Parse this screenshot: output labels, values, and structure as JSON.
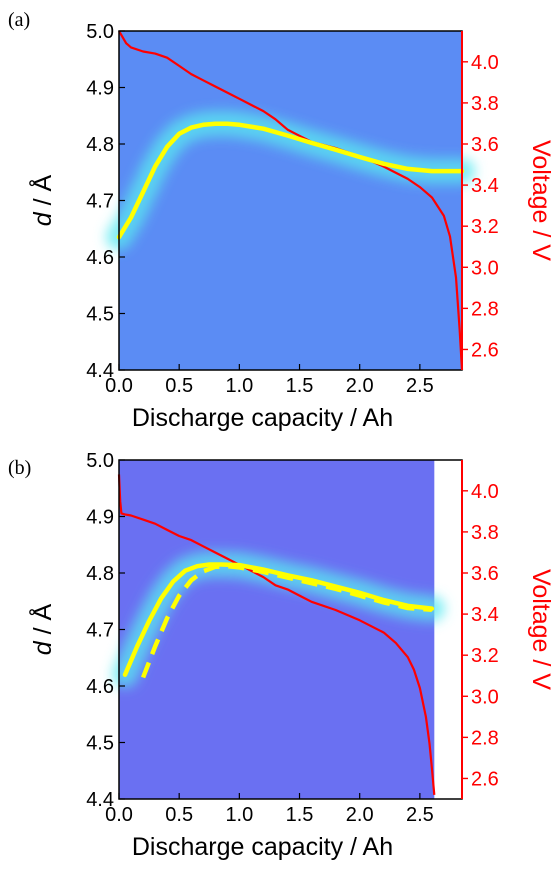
{
  "chart_data": [
    {
      "panel": "(a)",
      "type": "heatmap",
      "xlabel": "Discharge capacity / Ah",
      "ylabel_left_italic": "d",
      "ylabel_left_rest": " / Å",
      "ylabel_right": "Voltage / V",
      "xlim": [
        0,
        2.85
      ],
      "ylim_left": [
        4.4,
        5.0
      ],
      "ylim_right": [
        2.5,
        4.15
      ],
      "xticks": [
        "0.0",
        "0.5",
        "1.0",
        "1.5",
        "2.0",
        "2.5"
      ],
      "yticks_left": [
        "4.4",
        "4.5",
        "4.6",
        "4.7",
        "4.8",
        "4.9",
        "5.0"
      ],
      "yticks_right": [
        "2.6",
        "2.8",
        "3.0",
        "3.2",
        "3.4",
        "3.6",
        "3.8",
        "4.0"
      ],
      "background_color": "#5b8cf4",
      "band_end_x": 2.85,
      "d_spacing": {
        "name": "d",
        "axis": "left",
        "color": "#ffff00",
        "style": "solid",
        "x": [
          0.0,
          0.1,
          0.2,
          0.3,
          0.4,
          0.5,
          0.6,
          0.7,
          0.8,
          0.9,
          1.0,
          1.2,
          1.4,
          1.6,
          1.8,
          2.0,
          2.2,
          2.4,
          2.6,
          2.85
        ],
        "y": [
          4.635,
          4.67,
          4.715,
          4.76,
          4.795,
          4.818,
          4.829,
          4.834,
          4.836,
          4.836,
          4.834,
          4.827,
          4.815,
          4.802,
          4.79,
          4.777,
          4.765,
          4.756,
          4.752,
          4.752
        ]
      },
      "voltage": {
        "name": "Voltage",
        "axis": "right",
        "color": "#ff0000",
        "style": "solid",
        "x": [
          0.0,
          0.03,
          0.06,
          0.1,
          0.2,
          0.3,
          0.4,
          0.5,
          0.6,
          0.7,
          0.8,
          0.9,
          1.0,
          1.1,
          1.2,
          1.3,
          1.4,
          1.5,
          1.6,
          1.8,
          2.0,
          2.2,
          2.4,
          2.5,
          2.6,
          2.7,
          2.75,
          2.8,
          2.83,
          2.85
        ],
        "y": [
          4.15,
          4.12,
          4.09,
          4.07,
          4.05,
          4.04,
          4.02,
          3.98,
          3.94,
          3.91,
          3.88,
          3.85,
          3.82,
          3.79,
          3.76,
          3.72,
          3.67,
          3.64,
          3.61,
          3.58,
          3.54,
          3.49,
          3.43,
          3.39,
          3.34,
          3.25,
          3.15,
          2.95,
          2.7,
          2.5
        ]
      }
    },
    {
      "panel": "(b)",
      "type": "heatmap",
      "xlabel": "Discharge capacity / Ah",
      "ylabel_left_italic": "d",
      "ylabel_left_rest": " / Å",
      "ylabel_right": "Voltage / V",
      "xlim": [
        0,
        2.85
      ],
      "ylim_left": [
        4.4,
        5.0
      ],
      "ylim_right": [
        2.5,
        4.15
      ],
      "xticks": [
        "0.0",
        "0.5",
        "1.0",
        "1.5",
        "2.0",
        "2.5"
      ],
      "yticks_left": [
        "4.4",
        "4.5",
        "4.6",
        "4.7",
        "4.8",
        "4.9",
        "5.0"
      ],
      "yticks_right": [
        "2.6",
        "2.8",
        "3.0",
        "3.2",
        "3.4",
        "3.6",
        "3.8",
        "4.0"
      ],
      "background_color": "#6a70f2",
      "band_end_x": 2.62,
      "d_spacing": {
        "name": "d",
        "axis": "left",
        "color": "#ffff00",
        "style": "solid",
        "x": [
          0.05,
          0.15,
          0.25,
          0.35,
          0.45,
          0.55,
          0.65,
          0.75,
          0.85,
          1.0,
          1.2,
          1.4,
          1.6,
          1.8,
          2.0,
          2.2,
          2.4,
          2.6
        ],
        "y": [
          4.62,
          4.67,
          4.715,
          4.755,
          4.785,
          4.804,
          4.812,
          4.815,
          4.815,
          4.814,
          4.806,
          4.796,
          4.787,
          4.776,
          4.765,
          4.752,
          4.742,
          4.737
        ]
      },
      "d_spacing_2": {
        "name": "d",
        "axis": "left",
        "color": "#ffff00",
        "style": "dashed",
        "x": [
          0.2,
          0.3,
          0.4,
          0.5,
          0.6,
          0.7,
          0.8,
          0.9,
          1.0,
          1.2,
          1.4,
          1.6,
          1.8,
          2.0,
          2.2,
          2.4,
          2.6
        ],
        "y": [
          4.615,
          4.67,
          4.72,
          4.76,
          4.787,
          4.803,
          4.811,
          4.812,
          4.81,
          4.802,
          4.792,
          4.782,
          4.772,
          4.76,
          4.748,
          4.738,
          4.735
        ]
      },
      "voltage": {
        "name": "Voltage",
        "axis": "right",
        "color": "#ff0000",
        "style": "solid",
        "x": [
          0.0,
          0.01,
          0.02,
          0.05,
          0.1,
          0.2,
          0.3,
          0.4,
          0.5,
          0.6,
          0.7,
          0.8,
          0.9,
          1.0,
          1.1,
          1.2,
          1.3,
          1.4,
          1.5,
          1.6,
          1.8,
          2.0,
          2.2,
          2.3,
          2.4,
          2.45,
          2.5,
          2.55,
          2.58,
          2.6,
          2.62
        ],
        "y": [
          4.08,
          3.95,
          3.89,
          3.885,
          3.88,
          3.86,
          3.84,
          3.81,
          3.78,
          3.76,
          3.73,
          3.7,
          3.67,
          3.64,
          3.61,
          3.58,
          3.54,
          3.52,
          3.49,
          3.46,
          3.42,
          3.37,
          3.31,
          3.26,
          3.19,
          3.13,
          3.04,
          2.9,
          2.77,
          2.65,
          2.52
        ]
      }
    }
  ]
}
